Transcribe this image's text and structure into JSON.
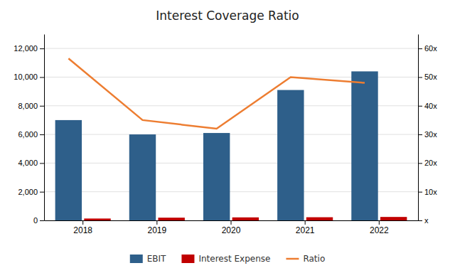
{
  "chart_data": {
    "type": "bar",
    "title": "Interest Coverage Ratio",
    "categories": [
      "2018",
      "2019",
      "2020",
      "2021",
      "2022"
    ],
    "series": [
      {
        "name": "EBIT",
        "type": "bar",
        "color": "#2E5F8A",
        "values": [
          7000,
          6000,
          6100,
          9100,
          10400
        ]
      },
      {
        "name": "Interest Expense",
        "type": "bar",
        "color": "#C00000",
        "values": [
          130,
          190,
          210,
          220,
          240
        ]
      },
      {
        "name": "Ratio",
        "type": "line",
        "axis": "y2",
        "color": "#ED7D31",
        "values": [
          56.5,
          35,
          32,
          50,
          48
        ]
      }
    ],
    "ylim": [
      0,
      13000
    ],
    "yticks": [
      0,
      {
        "value": 2000,
        "label": "2,000"
      },
      {
        "value": 4000,
        "label": "4,000"
      },
      {
        "value": 6000,
        "label": "6,000"
      },
      {
        "value": 8000,
        "label": "8,000"
      },
      {
        "value": 10000,
        "label": "10,000"
      },
      {
        "value": 12000,
        "label": "12,000"
      }
    ],
    "y2lim": [
      0,
      65
    ],
    "y2ticks": [
      {
        "value": 0,
        "label": "x"
      },
      {
        "value": 10,
        "label": "10x"
      },
      {
        "value": 20,
        "label": "20x"
      },
      {
        "value": 30,
        "label": "30x"
      },
      {
        "value": 40,
        "label": "40x"
      },
      {
        "value": 50,
        "label": "50x"
      },
      {
        "value": 60,
        "label": "60x"
      }
    ],
    "grid": true,
    "legend": "bottom"
  }
}
